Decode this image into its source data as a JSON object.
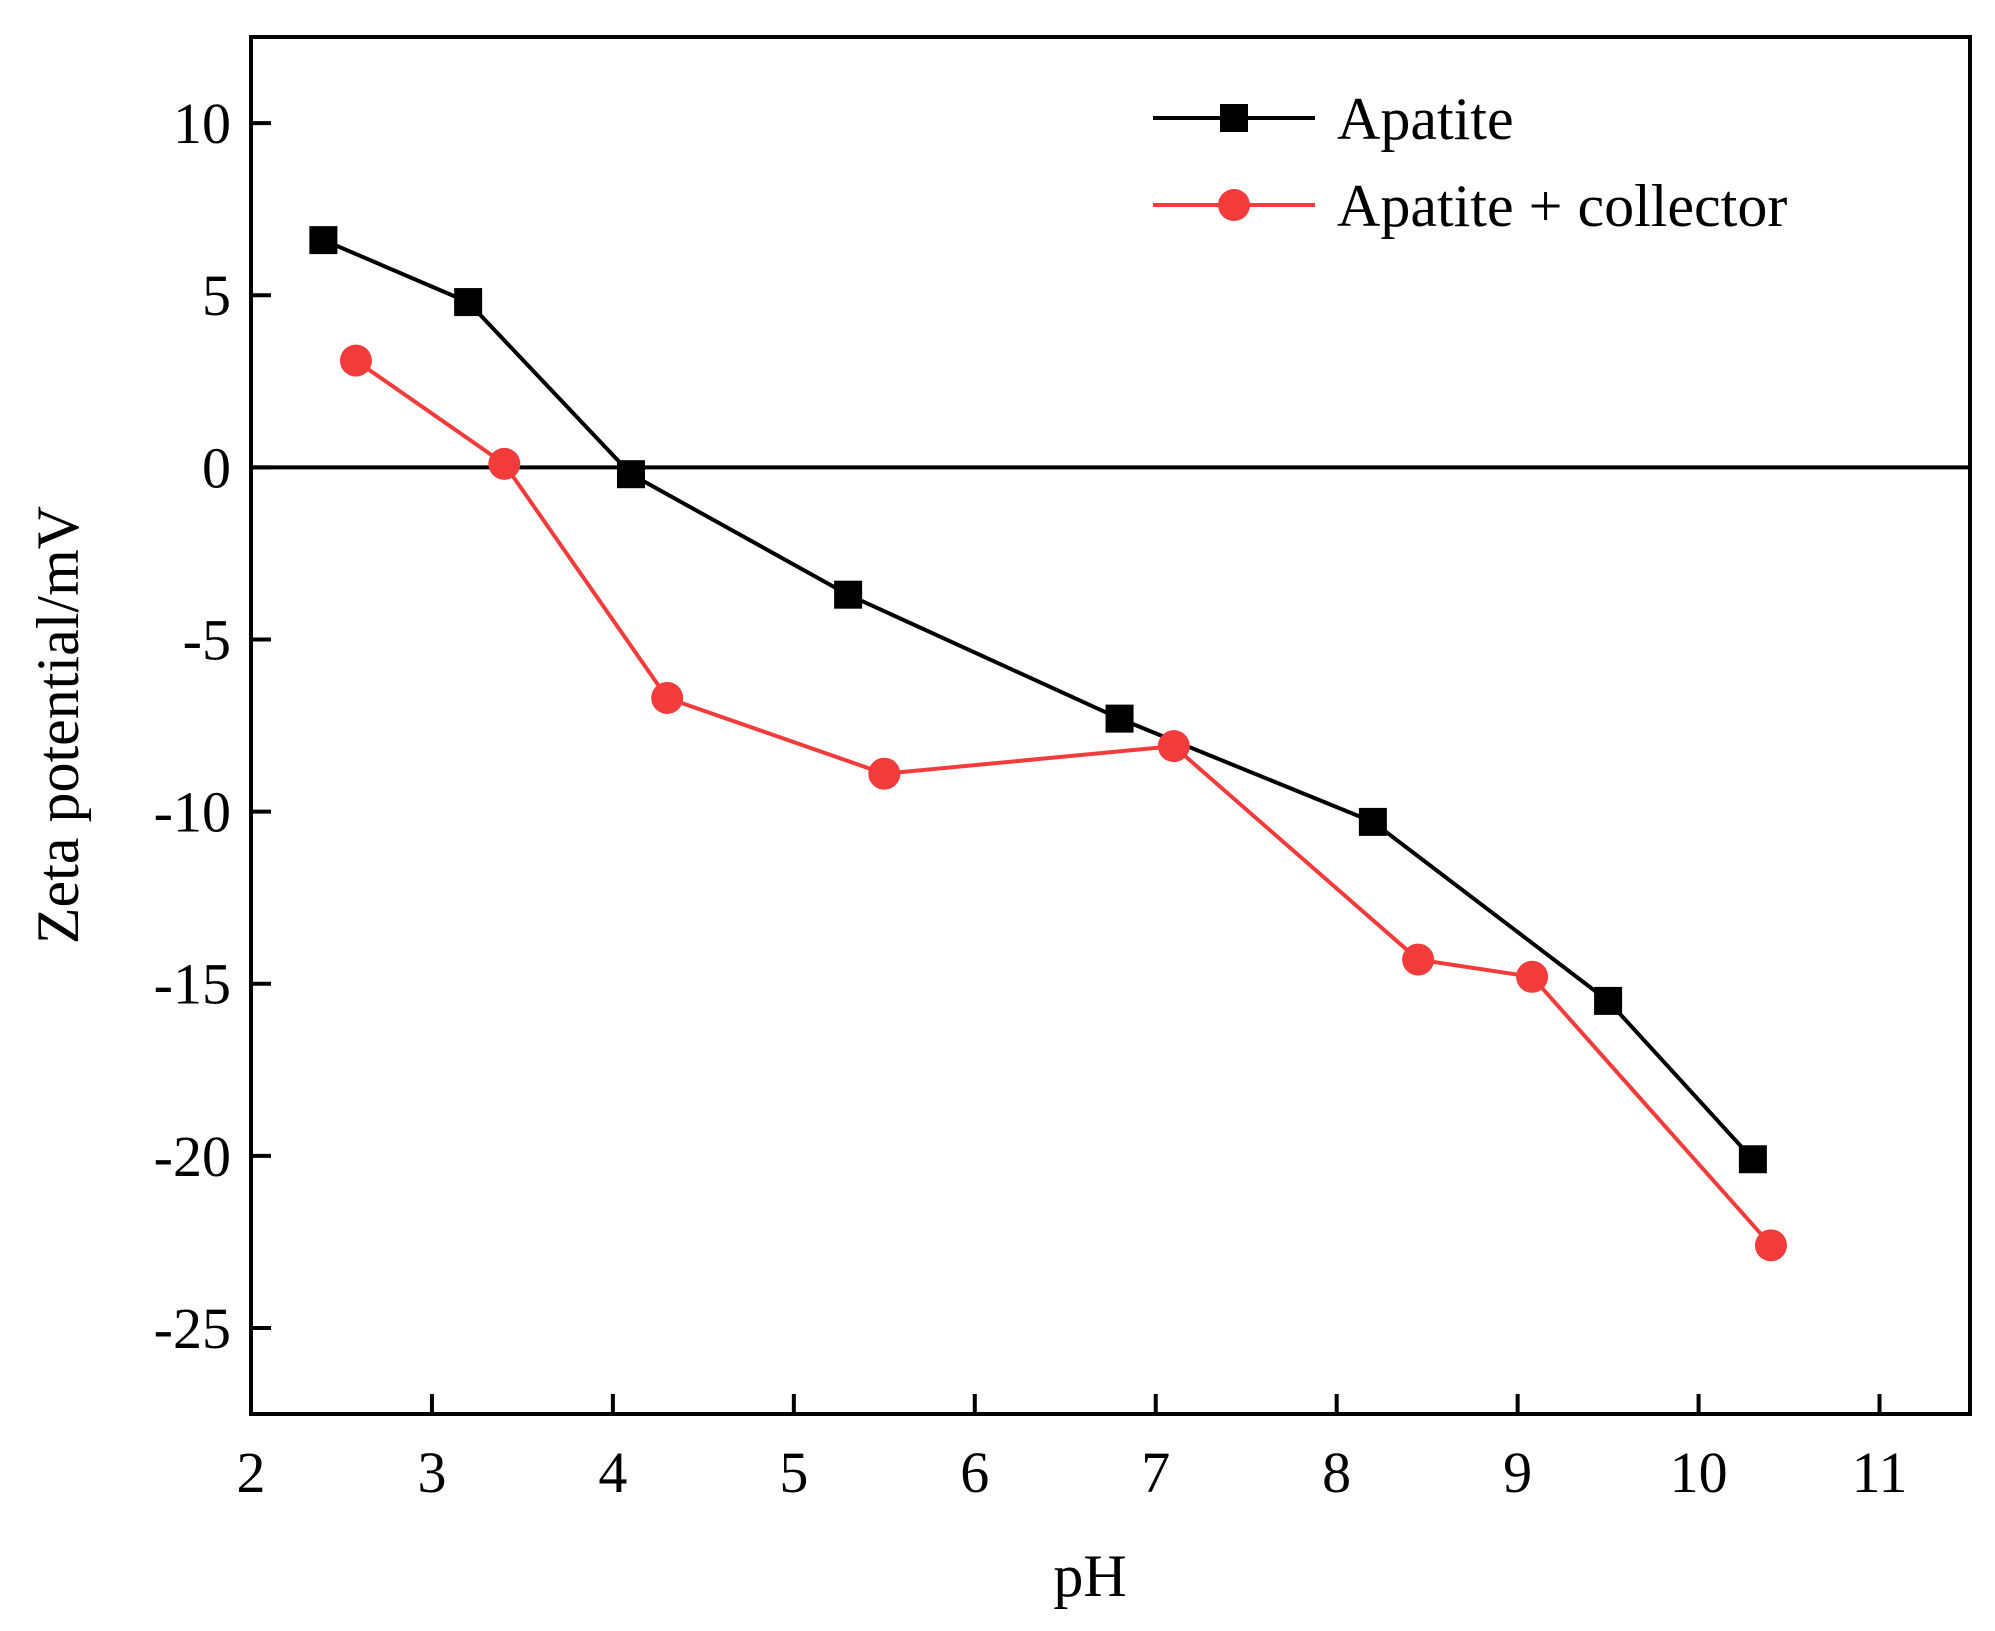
{
  "chart_data": {
    "type": "line",
    "title": "",
    "xlabel": "pH",
    "ylabel": "Zeta potential/mV",
    "xlim": [
      2,
      11.5
    ],
    "ylim": [
      -27.5,
      12.5
    ],
    "xticks": [
      2,
      3,
      4,
      5,
      6,
      7,
      8,
      9,
      10,
      11
    ],
    "xtick_labels": [
      "2",
      "3",
      "4",
      "5",
      "6",
      "7",
      "8",
      "9",
      "10",
      "11"
    ],
    "yticks": [
      10,
      5,
      0,
      -5,
      -10,
      -15,
      -20,
      -25
    ],
    "ytick_labels": [
      "10",
      "5",
      "0",
      "-5",
      "-10",
      "-15",
      "-20",
      "-25"
    ],
    "reference_line_y": 0,
    "legend_position": "top-right",
    "series": [
      {
        "name": "Apatite",
        "color": "#000000",
        "marker": "square",
        "x": [
          2.4,
          3.2,
          4.1,
          5.3,
          6.8,
          8.2,
          9.5,
          10.3
        ],
        "y": [
          6.6,
          4.8,
          -0.2,
          -3.7,
          -7.3,
          -10.3,
          -15.5,
          -20.1
        ]
      },
      {
        "name": "Apatite + collector",
        "color": "#f23c3c",
        "marker": "circle",
        "x": [
          2.58,
          3.4,
          4.3,
          5.5,
          7.1,
          8.45,
          9.08,
          10.4
        ],
        "y": [
          3.1,
          0.1,
          -6.7,
          -8.9,
          -8.1,
          -14.3,
          -14.8,
          -22.6
        ]
      }
    ]
  }
}
